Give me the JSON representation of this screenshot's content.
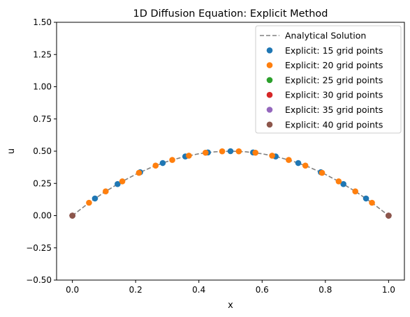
{
  "chart_data": {
    "type": "scatter",
    "title": "1D Diffusion Equation: Explicit Method",
    "xlabel": "x",
    "ylabel": "u",
    "xlim": [
      -0.05,
      1.05
    ],
    "ylim": [
      -0.5,
      1.5
    ],
    "xticks": [
      0.0,
      0.2,
      0.4,
      0.6,
      0.8,
      1.0
    ],
    "xtick_labels": [
      "0.0",
      "0.2",
      "0.4",
      "0.6",
      "0.8",
      "1.0"
    ],
    "yticks": [
      -0.5,
      -0.25,
      0.0,
      0.25,
      0.5,
      0.75,
      1.0,
      1.25,
      1.5
    ],
    "ytick_labels": [
      "−0.50",
      "−0.25",
      "0.00",
      "0.25",
      "0.50",
      "0.75",
      "1.00",
      "1.25",
      "1.50"
    ],
    "grid": false,
    "legend_placement": "top-right",
    "analytical": {
      "name": "Analytical Solution",
      "color": "#808080",
      "style": "dashed",
      "x": [
        0.0,
        0.05,
        0.1,
        0.15,
        0.2,
        0.25,
        0.3,
        0.35,
        0.4,
        0.45,
        0.5,
        0.55,
        0.6,
        0.65,
        0.7,
        0.75,
        0.8,
        0.85,
        0.9,
        0.95,
        1.0
      ],
      "y": [
        0.0,
        0.095,
        0.18,
        0.255,
        0.32,
        0.375,
        0.42,
        0.455,
        0.48,
        0.495,
        0.5,
        0.495,
        0.48,
        0.455,
        0.42,
        0.375,
        0.32,
        0.255,
        0.18,
        0.095,
        0.0
      ]
    },
    "series": [
      {
        "name": "Explicit: 15 grid points",
        "color": "#1f77b4",
        "x": [
          0.0,
          0.0714,
          0.1429,
          0.2143,
          0.2857,
          0.3571,
          0.4286,
          0.5,
          0.5714,
          0.6429,
          0.7143,
          0.7857,
          0.8571,
          0.9286,
          1.0
        ],
        "y": [
          0.0,
          0.133,
          0.245,
          0.337,
          0.408,
          0.459,
          0.49,
          0.5,
          0.49,
          0.459,
          0.408,
          0.337,
          0.245,
          0.133,
          0.0
        ]
      },
      {
        "name": "Explicit: 20 grid points",
        "color": "#ff7f0e",
        "x": [
          0.0,
          0.0526,
          0.1053,
          0.1579,
          0.2105,
          0.2632,
          0.3158,
          0.3684,
          0.4211,
          0.4737,
          0.5263,
          0.5789,
          0.6316,
          0.6842,
          0.7368,
          0.7895,
          0.8421,
          0.8947,
          0.9474,
          1.0
        ],
        "y": [
          0.0,
          0.1,
          0.188,
          0.266,
          0.332,
          0.388,
          0.432,
          0.465,
          0.488,
          0.499,
          0.499,
          0.488,
          0.465,
          0.432,
          0.388,
          0.332,
          0.266,
          0.188,
          0.1,
          0.0
        ]
      },
      {
        "name": "Explicit: 25 grid points",
        "color": "#2ca02c",
        "x": [
          0.0,
          1.0
        ],
        "y": [
          0.0,
          0.0
        ]
      },
      {
        "name": "Explicit: 30 grid points",
        "color": "#d62728",
        "x": [
          0.0,
          1.0
        ],
        "y": [
          0.0,
          0.0
        ]
      },
      {
        "name": "Explicit: 35 grid points",
        "color": "#9467bd",
        "x": [
          0.0,
          1.0
        ],
        "y": [
          0.0,
          0.0
        ]
      },
      {
        "name": "Explicit: 40 grid points",
        "color": "#8c564b",
        "x": [
          0.0,
          1.0
        ],
        "y": [
          0.0,
          0.0
        ]
      }
    ]
  }
}
